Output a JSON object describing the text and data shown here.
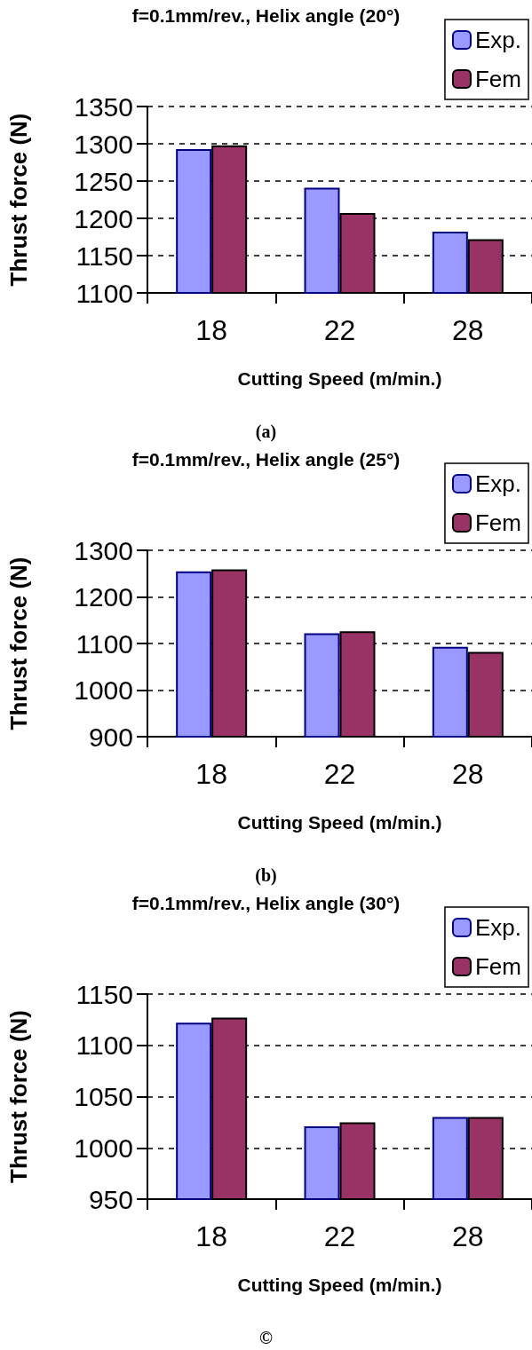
{
  "chart_data": [
    {
      "type": "bar",
      "title": "f=0.1mm/rev., Helix angle (20°)",
      "xlabel": "Cutting Speed (m/min.)",
      "ylabel": "Thrust force (N)",
      "annotations": [
        "(a)"
      ],
      "categories": [
        "18",
        "22",
        "28"
      ],
      "series": [
        {
          "name": "Exp.",
          "color": "#9999ff",
          "values": [
            1293,
            1241,
            1182
          ]
        },
        {
          "name": "Fem",
          "color": "#993366",
          "values": [
            1298,
            1207,
            1172
          ]
        }
      ],
      "ylim": [
        1100,
        1350
      ],
      "yticks": [
        1100,
        1150,
        1200,
        1250,
        1300,
        1350
      ],
      "grid": "y",
      "legend": "top right"
    },
    {
      "type": "bar",
      "title": "f=0.1mm/rev., Helix angle (25°)",
      "xlabel": "Cutting Speed (m/min.)",
      "ylabel": "Thrust force (N)",
      "annotations": [
        "(b)"
      ],
      "categories": [
        "18",
        "22",
        "28"
      ],
      "series": [
        {
          "name": "Exp.",
          "color": "#9999ff",
          "values": [
            1255,
            1122,
            1093
          ]
        },
        {
          "name": "Fem",
          "color": "#993366",
          "values": [
            1259,
            1126,
            1082
          ]
        }
      ],
      "ylim": [
        900,
        1300
      ],
      "yticks": [
        900,
        1000,
        1100,
        1200,
        1300
      ],
      "grid": "y",
      "legend": "top right"
    },
    {
      "type": "bar",
      "title": "f=0.1mm/rev., Helix angle (30°)",
      "xlabel": "Cutting Speed (m/min.)",
      "ylabel": "Thrust force (N)",
      "annotations": [
        "©"
      ],
      "categories": [
        "18",
        "22",
        "28"
      ],
      "series": [
        {
          "name": "Exp.",
          "color": "#9999ff",
          "values": [
            1122,
            1021,
            1030
          ]
        },
        {
          "name": "Fem",
          "color": "#993366",
          "values": [
            1127,
            1025,
            1030
          ]
        }
      ],
      "ylim": [
        950,
        1150
      ],
      "yticks": [
        950,
        1000,
        1050,
        1100,
        1150
      ],
      "grid": "y",
      "legend": "top right"
    }
  ]
}
